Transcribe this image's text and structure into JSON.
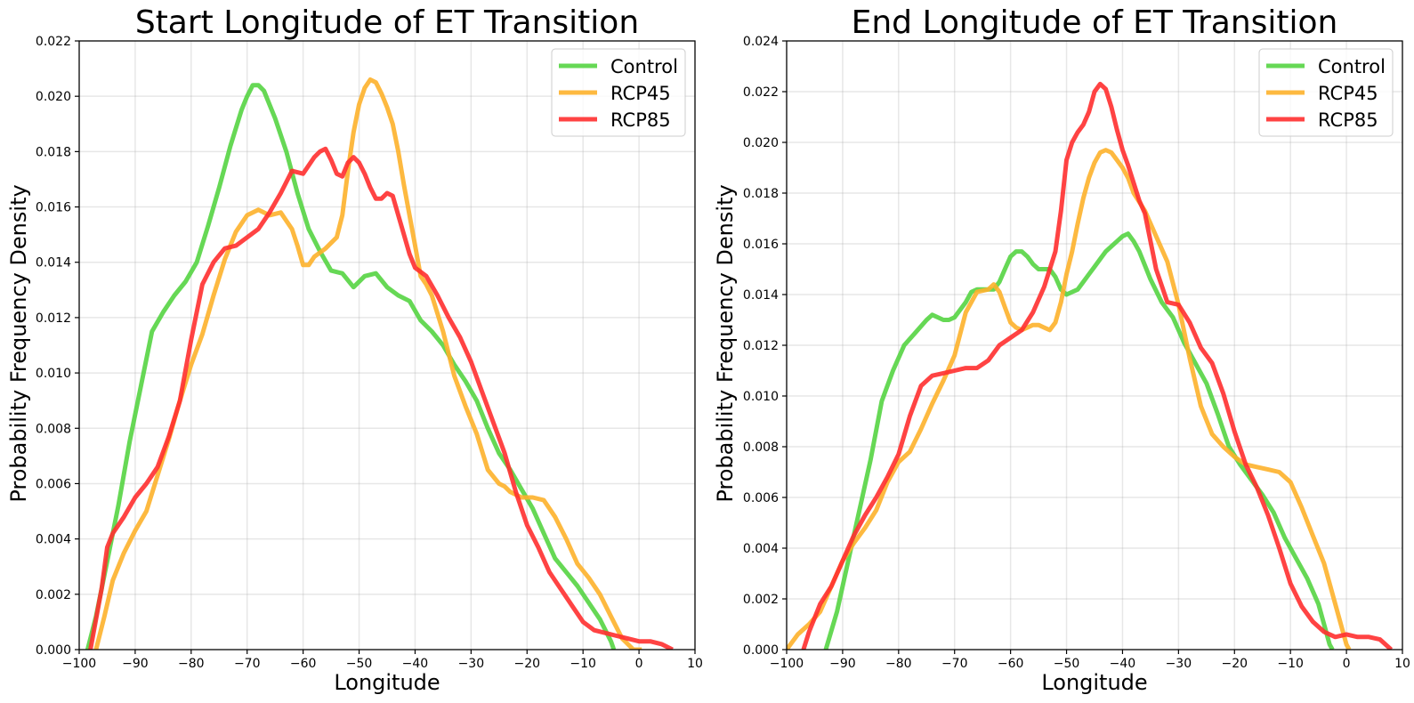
{
  "chart_data": [
    {
      "type": "line",
      "title": "Start Longitude of ET Transition",
      "xlabel": "Longitude",
      "ylabel": "Probability Frequency Density",
      "xlim": [
        -100,
        10
      ],
      "ylim": [
        0,
        0.022
      ],
      "xticks": [
        -100,
        -90,
        -80,
        -70,
        -60,
        -50,
        -40,
        -30,
        -20,
        -10,
        0,
        10
      ],
      "xtick_labels": [
        "−100",
        "−90",
        "−80",
        "−70",
        "−60",
        "−50",
        "−40",
        "−30",
        "−20",
        "−10",
        "0",
        "10"
      ],
      "yticks": [
        0,
        0.002,
        0.004,
        0.006,
        0.008,
        0.01,
        0.012,
        0.014,
        0.016,
        0.018,
        0.02,
        0.022
      ],
      "ytick_labels": [
        "0.000",
        "0.002",
        "0.004",
        "0.006",
        "0.008",
        "0.010",
        "0.012",
        "0.014",
        "0.016",
        "0.018",
        "0.020",
        "0.022"
      ],
      "grid": true,
      "legend_position": "top-right",
      "series": [
        {
          "name": "Control",
          "color": "#55d443",
          "x": [
            -98.5,
            -97,
            -95,
            -93,
            -91,
            -89,
            -87,
            -85,
            -83,
            -81,
            -79,
            -77,
            -75,
            -73,
            -71,
            -70,
            -69,
            -68,
            -67,
            -65,
            -63,
            -61,
            -59,
            -57,
            -55,
            -53,
            -51,
            -49,
            -47,
            -45,
            -43,
            -41,
            -39,
            -37,
            -35,
            -33,
            -31,
            -29,
            -27,
            -25,
            -23,
            -21,
            -19,
            -17,
            -15,
            -13,
            -11,
            -9,
            -7,
            -5,
            -4.5
          ],
          "values": [
            0.0,
            0.0012,
            0.0032,
            0.0052,
            0.0075,
            0.0095,
            0.0115,
            0.0122,
            0.0128,
            0.0133,
            0.014,
            0.0153,
            0.0167,
            0.0182,
            0.0195,
            0.02,
            0.0204,
            0.0204,
            0.0202,
            0.0192,
            0.018,
            0.0165,
            0.0152,
            0.0144,
            0.0137,
            0.0136,
            0.0131,
            0.0135,
            0.0136,
            0.0131,
            0.0128,
            0.0126,
            0.0119,
            0.0115,
            0.011,
            0.0103,
            0.0097,
            0.009,
            0.008,
            0.0071,
            0.0065,
            0.0058,
            0.0051,
            0.0042,
            0.0033,
            0.0028,
            0.0023,
            0.0017,
            0.0011,
            0.0003,
            0.0
          ]
        },
        {
          "name": "RCP45",
          "color": "#fdb12b",
          "x": [
            -97,
            -95.5,
            -94,
            -92,
            -90,
            -88,
            -86,
            -84,
            -82,
            -80,
            -78,
            -76,
            -74,
            -72,
            -70,
            -68,
            -66,
            -64,
            -63,
            -62,
            -61,
            -60,
            -59,
            -58,
            -56,
            -54,
            -53,
            -52,
            -51,
            -50,
            -49,
            -48,
            -47,
            -46,
            -45,
            -44,
            -43,
            -42,
            -41,
            -40,
            -39,
            -38,
            -37,
            -35,
            -33,
            -31,
            -29,
            -27,
            -25,
            -24,
            -23,
            -21,
            -19,
            -17,
            -16,
            -15,
            -13,
            -11,
            -9,
            -7,
            -5,
            -3,
            -1,
            0,
            0.5
          ],
          "values": [
            0.0,
            0.0012,
            0.0025,
            0.0035,
            0.0043,
            0.005,
            0.0063,
            0.0076,
            0.009,
            0.0103,
            0.0114,
            0.0128,
            0.0141,
            0.0151,
            0.0157,
            0.0159,
            0.0157,
            0.0158,
            0.0155,
            0.0152,
            0.0146,
            0.0139,
            0.0139,
            0.0142,
            0.0145,
            0.0149,
            0.0157,
            0.0173,
            0.0187,
            0.0197,
            0.0203,
            0.0206,
            0.0205,
            0.0201,
            0.0196,
            0.019,
            0.018,
            0.0168,
            0.0157,
            0.0146,
            0.0135,
            0.0132,
            0.0128,
            0.0115,
            0.0099,
            0.0088,
            0.0078,
            0.0065,
            0.006,
            0.0059,
            0.0057,
            0.0055,
            0.0055,
            0.0054,
            0.0051,
            0.0048,
            0.004,
            0.0031,
            0.0026,
            0.002,
            0.0012,
            0.0004,
            0.0,
            0.0,
            0.0
          ]
        },
        {
          "name": "RCP85",
          "color": "#ff2f2f",
          "x": [
            -98,
            -96,
            -95,
            -94,
            -92,
            -90,
            -88,
            -86,
            -84,
            -82,
            -80,
            -78,
            -76,
            -74,
            -72,
            -70,
            -68,
            -66,
            -64,
            -62,
            -60,
            -58,
            -57,
            -56,
            -55,
            -54,
            -53,
            -52,
            -51,
            -50,
            -49,
            -48,
            -47,
            -46,
            -45,
            -44,
            -43,
            -42,
            -41,
            -40,
            -38,
            -36,
            -34,
            -32,
            -30,
            -28,
            -26,
            -24,
            -22,
            -20,
            -18,
            -16,
            -14,
            -12,
            -10,
            -8,
            -6,
            -4,
            -2,
            0,
            2,
            4,
            6
          ],
          "values": [
            0.0,
            0.0022,
            0.0037,
            0.0042,
            0.0048,
            0.0055,
            0.006,
            0.0066,
            0.0077,
            0.009,
            0.0112,
            0.0132,
            0.014,
            0.0145,
            0.0146,
            0.0149,
            0.0152,
            0.0158,
            0.0165,
            0.0173,
            0.0172,
            0.0178,
            0.018,
            0.0181,
            0.0177,
            0.0172,
            0.0171,
            0.0176,
            0.0178,
            0.0176,
            0.0172,
            0.0167,
            0.0163,
            0.0163,
            0.0165,
            0.0164,
            0.0157,
            0.015,
            0.0143,
            0.0138,
            0.0135,
            0.0128,
            0.012,
            0.0113,
            0.0104,
            0.0093,
            0.0082,
            0.0071,
            0.0057,
            0.0045,
            0.0037,
            0.0028,
            0.0022,
            0.0016,
            0.001,
            0.0007,
            0.0006,
            0.0005,
            0.0004,
            0.0003,
            0.0003,
            0.0002,
            0.0
          ]
        }
      ]
    },
    {
      "type": "line",
      "title": "End Longitude of ET Transition",
      "xlabel": "Longitude",
      "ylabel": "Probability Frequency Density",
      "xlim": [
        -100,
        10
      ],
      "ylim": [
        0,
        0.024
      ],
      "xticks": [
        -100,
        -90,
        -80,
        -70,
        -60,
        -50,
        -40,
        -30,
        -20,
        -10,
        0,
        10
      ],
      "xtick_labels": [
        "−100",
        "−90",
        "−80",
        "−70",
        "−60",
        "−50",
        "−40",
        "−30",
        "−20",
        "−10",
        "0",
        "10"
      ],
      "yticks": [
        0,
        0.002,
        0.004,
        0.006,
        0.008,
        0.01,
        0.012,
        0.014,
        0.016,
        0.018,
        0.02,
        0.022,
        0.024
      ],
      "ytick_labels": [
        "0.000",
        "0.002",
        "0.004",
        "0.006",
        "0.008",
        "0.010",
        "0.012",
        "0.014",
        "0.016",
        "0.018",
        "0.020",
        "0.022",
        "0.024"
      ],
      "grid": true,
      "legend_position": "top-right",
      "series": [
        {
          "name": "Control",
          "color": "#55d443",
          "x": [
            -93,
            -91,
            -89,
            -87,
            -85,
            -83,
            -81,
            -79,
            -77,
            -75,
            -74,
            -73,
            -72,
            -71,
            -70,
            -69,
            -68,
            -67,
            -66,
            -65,
            -64,
            -63,
            -62,
            -61,
            -60,
            -59,
            -58,
            -57,
            -56,
            -55,
            -54,
            -53,
            -52,
            -51,
            -50,
            -49,
            -48,
            -47,
            -46,
            -45,
            -44,
            -43,
            -42,
            -41,
            -40,
            -39,
            -38,
            -37,
            -35,
            -33,
            -31,
            -29,
            -27,
            -25,
            -23,
            -21,
            -19,
            -17,
            -15,
            -13,
            -11,
            -9,
            -7,
            -5,
            -3,
            -2.5
          ],
          "values": [
            0.0,
            0.0015,
            0.0035,
            0.0055,
            0.0075,
            0.0098,
            0.011,
            0.012,
            0.0125,
            0.013,
            0.0132,
            0.0131,
            0.013,
            0.013,
            0.0131,
            0.0134,
            0.0137,
            0.0141,
            0.0142,
            0.0142,
            0.0142,
            0.0142,
            0.0145,
            0.015,
            0.0155,
            0.0157,
            0.0157,
            0.0155,
            0.0152,
            0.015,
            0.015,
            0.015,
            0.0147,
            0.0142,
            0.014,
            0.0141,
            0.0142,
            0.0145,
            0.0148,
            0.0151,
            0.0154,
            0.0157,
            0.0159,
            0.0161,
            0.0163,
            0.0164,
            0.0161,
            0.0157,
            0.0146,
            0.0137,
            0.0131,
            0.0121,
            0.0113,
            0.0105,
            0.0093,
            0.008,
            0.0073,
            0.0067,
            0.0061,
            0.0054,
            0.0044,
            0.0036,
            0.0028,
            0.0018,
            0.0002,
            0.0
          ]
        },
        {
          "name": "RCP45",
          "color": "#fdb12b",
          "x": [
            -100,
            -98,
            -96,
            -94,
            -92,
            -90,
            -88,
            -86,
            -84,
            -82,
            -80,
            -78,
            -76,
            -74,
            -72,
            -70,
            -68,
            -66,
            -64,
            -63,
            -62,
            -61,
            -60,
            -59,
            -58,
            -57,
            -56,
            -55,
            -54,
            -53,
            -52,
            -51,
            -50,
            -49,
            -48,
            -47,
            -46,
            -45,
            -44,
            -43,
            -42,
            -41,
            -40,
            -39,
            -38,
            -36,
            -34,
            -32,
            -30,
            -28,
            -26,
            -24,
            -22,
            -20,
            -18,
            -16,
            -14,
            -12,
            -10,
            -8,
            -6,
            -4,
            -2,
            0,
            0.5
          ],
          "values": [
            0.0,
            0.0006,
            0.001,
            0.0015,
            0.0025,
            0.0035,
            0.0042,
            0.0048,
            0.0055,
            0.0066,
            0.0074,
            0.0078,
            0.0087,
            0.0097,
            0.0106,
            0.0116,
            0.0133,
            0.0141,
            0.0142,
            0.0144,
            0.0141,
            0.0135,
            0.0129,
            0.0127,
            0.0126,
            0.0127,
            0.0128,
            0.0128,
            0.0127,
            0.0126,
            0.0129,
            0.0137,
            0.0148,
            0.0157,
            0.0168,
            0.0178,
            0.0186,
            0.0192,
            0.0196,
            0.0197,
            0.0196,
            0.0193,
            0.019,
            0.0186,
            0.018,
            0.0173,
            0.0163,
            0.0153,
            0.0136,
            0.0115,
            0.0096,
            0.0085,
            0.008,
            0.0076,
            0.0073,
            0.0072,
            0.0071,
            0.007,
            0.0066,
            0.0056,
            0.0045,
            0.0034,
            0.0018,
            0.0002,
            0.0
          ]
        },
        {
          "name": "RCP85",
          "color": "#ff2f2f",
          "x": [
            -97,
            -96,
            -94,
            -92,
            -90,
            -88,
            -86,
            -84,
            -82,
            -80,
            -78,
            -76,
            -74,
            -72,
            -70,
            -68,
            -66,
            -64,
            -62,
            -60,
            -58,
            -56,
            -54,
            -52,
            -51,
            -50,
            -49,
            -48,
            -47,
            -46,
            -45,
            -44,
            -43,
            -42,
            -41,
            -40,
            -39,
            -38,
            -37,
            -36,
            -34,
            -32,
            -30,
            -28,
            -26,
            -24,
            -22,
            -20,
            -18,
            -16,
            -14,
            -12,
            -10,
            -8,
            -6,
            -4,
            -2,
            0,
            2,
            4,
            6,
            8
          ],
          "values": [
            0.0,
            0.0007,
            0.0018,
            0.0025,
            0.0035,
            0.0045,
            0.0053,
            0.006,
            0.0068,
            0.0077,
            0.0092,
            0.0104,
            0.0108,
            0.0109,
            0.011,
            0.0111,
            0.0111,
            0.0114,
            0.012,
            0.0123,
            0.0126,
            0.0133,
            0.0143,
            0.0157,
            0.0173,
            0.0193,
            0.02,
            0.0204,
            0.0207,
            0.0212,
            0.022,
            0.0223,
            0.0221,
            0.0214,
            0.0205,
            0.0197,
            0.0191,
            0.0184,
            0.0177,
            0.0172,
            0.015,
            0.0137,
            0.0136,
            0.0129,
            0.0119,
            0.0113,
            0.0101,
            0.0086,
            0.0073,
            0.0064,
            0.0053,
            0.004,
            0.0026,
            0.0017,
            0.0011,
            0.0007,
            0.0005,
            0.0006,
            0.0005,
            0.0005,
            0.0004,
            0.0
          ]
        }
      ]
    }
  ]
}
